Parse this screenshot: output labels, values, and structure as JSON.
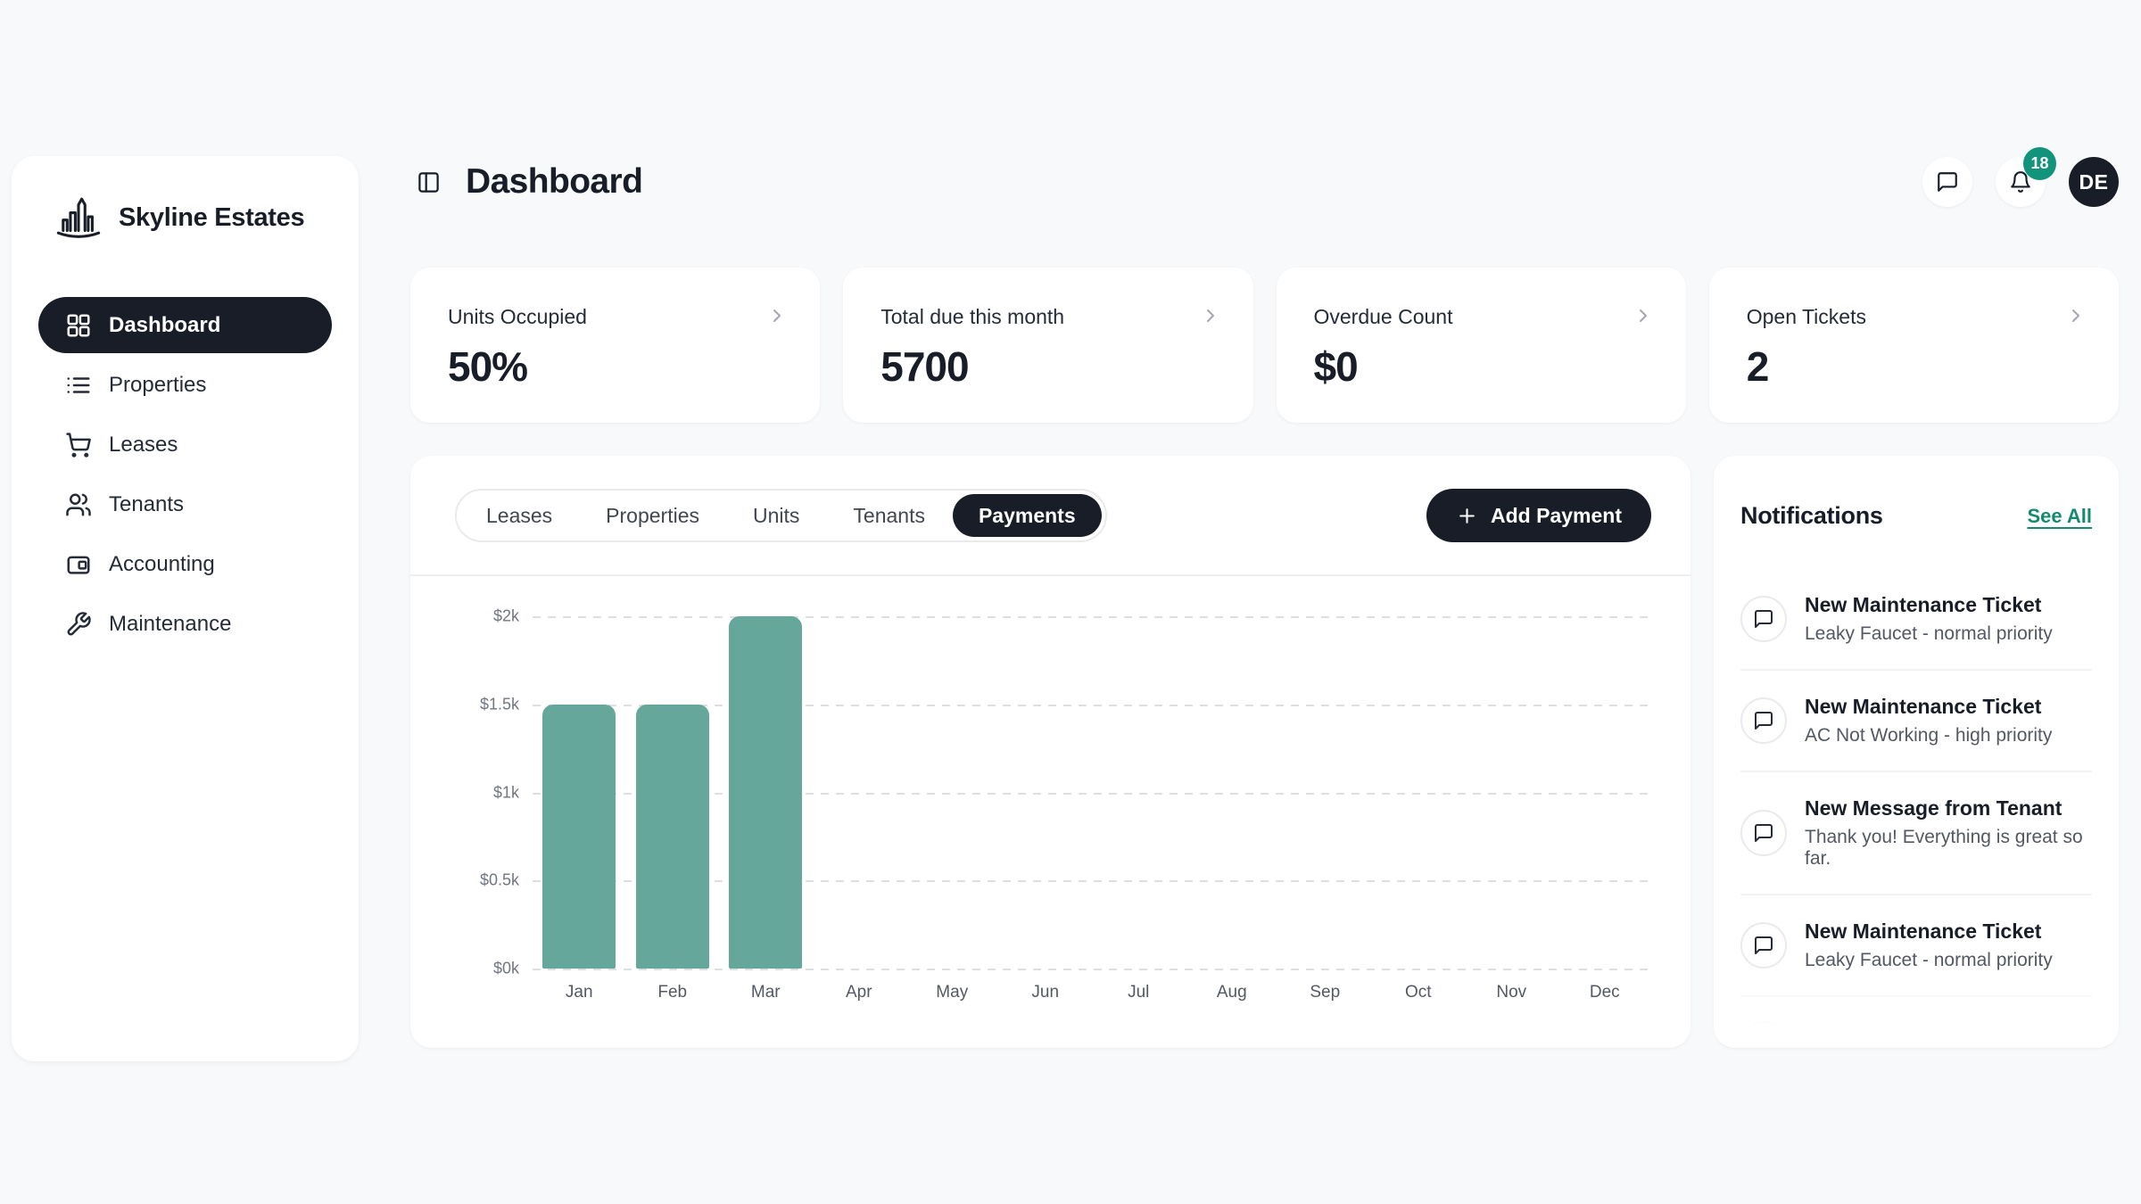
{
  "brand": {
    "name": "Skyline Estates"
  },
  "sidebar": {
    "items": [
      {
        "id": "dashboard",
        "label": "Dashboard",
        "icon": "dashboard-grid-icon",
        "active": true
      },
      {
        "id": "properties",
        "label": "Properties",
        "icon": "list-icon",
        "active": false
      },
      {
        "id": "leases",
        "label": "Leases",
        "icon": "cart-icon",
        "active": false
      },
      {
        "id": "tenants",
        "label": "Tenants",
        "icon": "users-icon",
        "active": false
      },
      {
        "id": "accounting",
        "label": "Accounting",
        "icon": "wallet-icon",
        "active": false
      },
      {
        "id": "maintenance",
        "label": "Maintenance",
        "icon": "wrench-icon",
        "active": false
      }
    ]
  },
  "header": {
    "title": "Dashboard",
    "notification_badge": "18",
    "avatar_initials": "DE"
  },
  "stat_cards": [
    {
      "id": "units-occupied",
      "label": "Units Occupied",
      "value": "50%"
    },
    {
      "id": "total-due",
      "label": "Total due this month",
      "value": "5700"
    },
    {
      "id": "overdue-count",
      "label": "Overdue Count",
      "value": "$0"
    },
    {
      "id": "open-tickets",
      "label": "Open Tickets",
      "value": "2"
    }
  ],
  "content_tabs": [
    {
      "label": "Leases",
      "active": false
    },
    {
      "label": "Properties",
      "active": false
    },
    {
      "label": "Units",
      "active": false
    },
    {
      "label": "Tenants",
      "active": false
    },
    {
      "label": "Payments",
      "active": true
    }
  ],
  "actions": {
    "add_payment_label": "Add Payment"
  },
  "chart_data": {
    "type": "bar",
    "categories": [
      "Jan",
      "Feb",
      "Mar",
      "Apr",
      "May",
      "Jun",
      "Jul",
      "Aug",
      "Sep",
      "Oct",
      "Nov",
      "Dec"
    ],
    "values": [
      1500,
      1500,
      2000,
      0,
      0,
      0,
      0,
      0,
      0,
      0,
      0,
      0
    ],
    "y_ticks": [
      "$2k",
      "$1.5k",
      "$1k",
      "$0.5k",
      "$0k"
    ],
    "ylim": [
      0,
      2000
    ],
    "xlabel": "",
    "ylabel": "",
    "title": "",
    "legend": "none",
    "grid": "horizontal-dashed",
    "bar_color": "#65A79A"
  },
  "notifications": {
    "heading": "Notifications",
    "see_all_label": "See All",
    "items": [
      {
        "title": "New Maintenance Ticket",
        "subtitle": "Leaky Faucet - normal priority"
      },
      {
        "title": "New Maintenance Ticket",
        "subtitle": "AC Not Working - high priority"
      },
      {
        "title": "New Message from Tenant",
        "subtitle": "Thank you! Everything is great so far."
      },
      {
        "title": "New Maintenance Ticket",
        "subtitle": "Leaky Faucet - normal priority"
      }
    ],
    "has_partial_fifth_item": true
  },
  "colors": {
    "dark": "#181D27",
    "accent_badge": "#12947C",
    "link_teal": "#168A6E",
    "bar": "#65A79A",
    "background": "#F8F9FA"
  }
}
